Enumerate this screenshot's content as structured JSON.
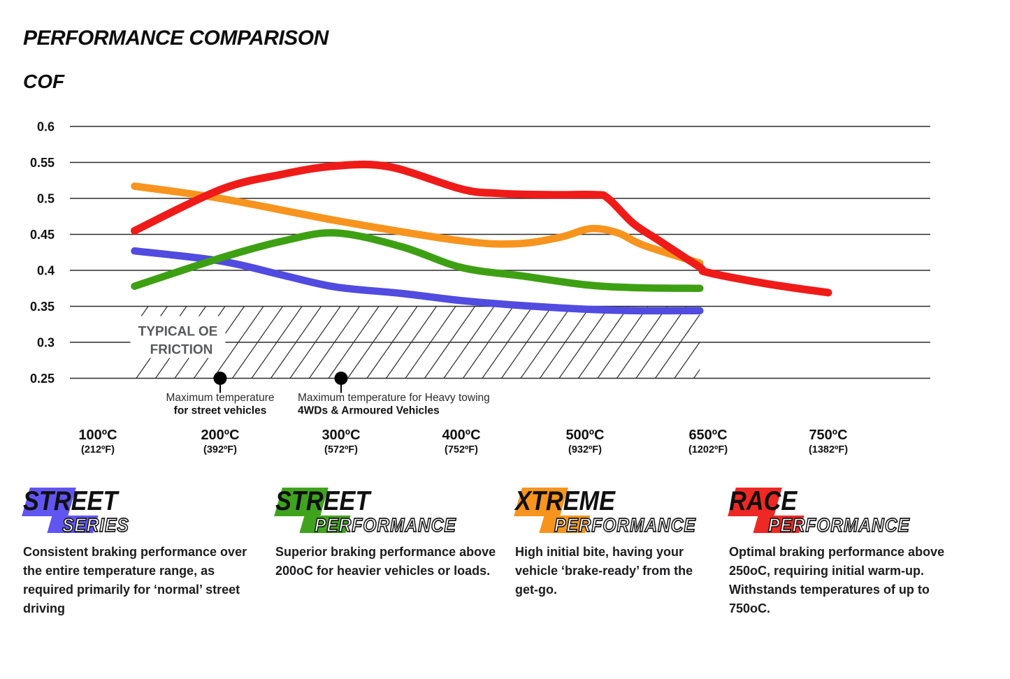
{
  "title": "PERFORMANCE COMPARISON",
  "y_axis_label": "COF",
  "chart_data": {
    "type": "line",
    "title": "PERFORMANCE COMPARISON",
    "ylabel": "COF",
    "ylim": [
      0.25,
      0.6
    ],
    "grid": true,
    "y_ticks": [
      "0.6",
      "0.55",
      "0.5",
      "0.45",
      "0.4",
      "0.35",
      "0.3",
      "0.25"
    ],
    "y_tick_values": [
      0.6,
      0.55,
      0.5,
      0.45,
      0.4,
      0.35,
      0.3,
      0.25
    ],
    "x_categories": [
      {
        "temp": 100,
        "celsius": "100ºC",
        "fahrenheit": "(212ºF)"
      },
      {
        "temp": 200,
        "celsius": "200ºC",
        "fahrenheit": "(392ºF)"
      },
      {
        "temp": 300,
        "celsius": "300ºC",
        "fahrenheit": "(572ºF)"
      },
      {
        "temp": 400,
        "celsius": "400ºC",
        "fahrenheit": "(752ºF)"
      },
      {
        "temp": 500,
        "celsius": "500ºC",
        "fahrenheit": "(932ºF)"
      },
      {
        "temp": 650,
        "celsius": "650ºC",
        "fahrenheit": "(1202ºF)"
      },
      {
        "temp": 750,
        "celsius": "750ºC",
        "fahrenheit": "(1382ºF)"
      }
    ],
    "series": [
      {
        "name": "Street Series",
        "color": "#514be0",
        "points": [
          [
            130,
            0.427
          ],
          [
            200,
            0.413
          ],
          [
            250,
            0.394
          ],
          [
            295,
            0.377
          ],
          [
            350,
            0.368
          ],
          [
            400,
            0.358
          ],
          [
            450,
            0.351
          ],
          [
            500,
            0.346
          ],
          [
            560,
            0.344
          ],
          [
            640,
            0.344
          ]
        ]
      },
      {
        "name": "Street Performance",
        "color": "#3da013",
        "points": [
          [
            130,
            0.378
          ],
          [
            200,
            0.417
          ],
          [
            250,
            0.44
          ],
          [
            295,
            0.452
          ],
          [
            350,
            0.433
          ],
          [
            400,
            0.404
          ],
          [
            450,
            0.392
          ],
          [
            500,
            0.38
          ],
          [
            560,
            0.376
          ],
          [
            640,
            0.375
          ]
        ]
      },
      {
        "name": "Xtreme Performance",
        "color": "#f7941e",
        "points": [
          [
            130,
            0.517
          ],
          [
            200,
            0.5
          ],
          [
            300,
            0.468
          ],
          [
            400,
            0.441
          ],
          [
            445,
            0.437
          ],
          [
            480,
            0.446
          ],
          [
            507,
            0.458
          ],
          [
            540,
            0.452
          ],
          [
            571,
            0.435
          ],
          [
            640,
            0.41
          ]
        ]
      },
      {
        "name": "Race Performance",
        "color": "#ef1b18",
        "points": [
          [
            130,
            0.455
          ],
          [
            200,
            0.512
          ],
          [
            250,
            0.533
          ],
          [
            295,
            0.545
          ],
          [
            340,
            0.544
          ],
          [
            400,
            0.513
          ],
          [
            430,
            0.507
          ],
          [
            470,
            0.505
          ],
          [
            512,
            0.505
          ],
          [
            528,
            0.5
          ],
          [
            559,
            0.465
          ],
          [
            588,
            0.443
          ],
          [
            639,
            0.405
          ],
          [
            650,
            0.397
          ],
          [
            700,
            0.381
          ],
          [
            750,
            0.369
          ]
        ]
      }
    ],
    "oe_zone": {
      "label_line1": "TYPICAL OE",
      "label_line2": "FRICTION",
      "label_color": "#58595b",
      "cof_min": 0.25,
      "cof_max": 0.35,
      "temp_start": 130,
      "temp_end": 640
    },
    "annotations": [
      {
        "temp": 200,
        "line1": "Maximum temperature",
        "line2": "for street vehicles",
        "align": "middle"
      },
      {
        "temp": 300,
        "line1": "Maximum temperature for Heavy towing",
        "line2": "4WDs & Armoured Vehicles",
        "align": "left"
      }
    ]
  },
  "legend": [
    {
      "word_top": "STREET",
      "word_bottom": "SERIES",
      "color": "#6155f2",
      "description": "Consistent braking performance over the entire temperature range, as required primarily for ‘normal’ street driving"
    },
    {
      "word_top": "STREET",
      "word_bottom": "PERFORMANCE",
      "color": "#3fa31e",
      "description": "Superior braking performance above 200oC for heavier vehicles or loads."
    },
    {
      "word_top": "XTREME",
      "word_bottom": "PERFORMANCE",
      "color": "#f7941e",
      "description": "High initial bite, having your vehicle ‘brake-ready’ from the get-go."
    },
    {
      "word_top": "RACE",
      "word_bottom": "PERFORMANCE",
      "color": "#ee2824",
      "description": "Optimal braking performance above 250oC, requiring initial warm-up. Withstands temperatures of up to 750oC."
    }
  ]
}
